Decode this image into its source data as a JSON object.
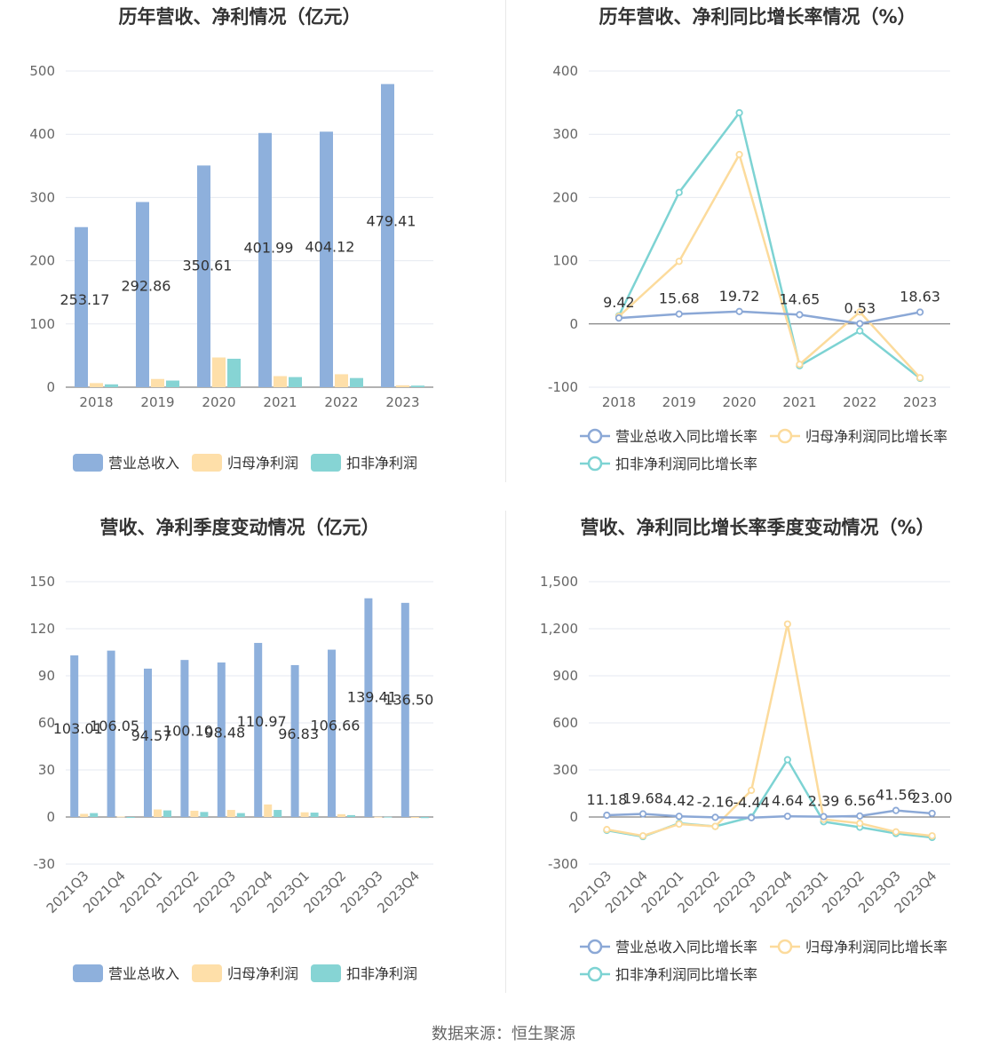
{
  "footer": {
    "source": "数据来源：恒生聚源"
  },
  "colors": {
    "revenue": "#8eb0dc",
    "net_profit": "#fedfa9",
    "deducted": "#86d4d4",
    "revenue_line": "#8ba8d6",
    "profit_line": "#fcdb9c",
    "deducted_line": "#7dd3d3"
  },
  "chart_data": [
    {
      "id": "annual-amount",
      "type": "bar",
      "title": "历年营收、净利情况（亿元）",
      "categories": [
        "2018",
        "2019",
        "2020",
        "2021",
        "2022",
        "2023"
      ],
      "ylim": [
        0,
        500
      ],
      "yticks": [
        0,
        100,
        200,
        300,
        400,
        500
      ],
      "ytick_labels": [
        "0",
        "100",
        "200",
        "300",
        "400",
        "500"
      ],
      "series": [
        {
          "name": "营业总收入",
          "values": [
            253.17,
            292.86,
            350.61,
            401.99,
            404.12,
            479.41
          ],
          "labels": [
            "253.17",
            "292.86",
            "350.61",
            "401.99",
            "404.12",
            "479.41"
          ]
        },
        {
          "name": "归母净利润",
          "values": [
            6.5,
            13.0,
            47.0,
            17.5,
            20.5,
            3.0
          ]
        },
        {
          "name": "扣非净利润",
          "values": [
            4.5,
            10.5,
            45.0,
            16.0,
            14.5,
            2.5
          ]
        }
      ],
      "legend": "bottom",
      "grid": true
    },
    {
      "id": "annual-growth",
      "type": "line",
      "title": "历年营收、净利同比增长率情况（%）",
      "categories": [
        "2018",
        "2019",
        "2020",
        "2021",
        "2022",
        "2023"
      ],
      "ylim": [
        -100,
        400
      ],
      "yticks": [
        -100,
        0,
        100,
        200,
        300,
        400
      ],
      "ytick_labels": [
        "-100",
        "0",
        "100",
        "200",
        "300",
        "400"
      ],
      "series": [
        {
          "name": "营业总收入同比增长率",
          "values": [
            9.42,
            15.68,
            19.72,
            14.65,
            0.53,
            18.63
          ],
          "labels": [
            "9.42",
            "15.68",
            "19.72",
            "14.65",
            "0.53",
            "18.63"
          ]
        },
        {
          "name": "归母净利润同比增长率",
          "values": [
            12,
            99,
            268,
            -64,
            19,
            -85
          ]
        },
        {
          "name": "扣非净利润同比增长率",
          "values": [
            13,
            208,
            334,
            -66,
            -11,
            -86
          ]
        }
      ],
      "legend": "bottom",
      "grid": true
    },
    {
      "id": "quarterly-amount",
      "type": "bar",
      "title": "营收、净利季度变动情况（亿元）",
      "categories": [
        "2021Q3",
        "2021Q4",
        "2022Q1",
        "2022Q2",
        "2022Q3",
        "2022Q4",
        "2023Q1",
        "2023Q2",
        "2023Q3",
        "2023Q4"
      ],
      "ylim": [
        -30,
        150
      ],
      "yticks": [
        -30,
        0,
        30,
        60,
        90,
        120,
        150
      ],
      "ytick_labels": [
        "-30",
        "0",
        "30",
        "60",
        "90",
        "120",
        "150"
      ],
      "series": [
        {
          "name": "营业总收入",
          "values": [
            103.01,
            106.05,
            94.57,
            100.1,
            98.48,
            110.97,
            96.83,
            106.66,
            139.41,
            136.5
          ],
          "labels": [
            "103.01",
            "106.05",
            "94.57",
            "100.10",
            "98.48",
            "110.97",
            "96.83",
            "106.66",
            "139.41",
            "136.50"
          ]
        },
        {
          "name": "归母净利润",
          "values": [
            2.0,
            0.3,
            4.8,
            4.0,
            4.5,
            8.0,
            3.0,
            1.8,
            0.1,
            -0.6
          ]
        },
        {
          "name": "扣非净利润",
          "values": [
            2.5,
            -0.6,
            4.2,
            3.2,
            2.5,
            4.5,
            2.8,
            1.2,
            0.1,
            -0.7
          ]
        }
      ],
      "legend": "bottom",
      "grid": true
    },
    {
      "id": "quarterly-growth",
      "type": "line",
      "title": "营收、净利同比增长率季度变动情况（%）",
      "categories": [
        "2021Q3",
        "2021Q4",
        "2022Q1",
        "2022Q2",
        "2022Q3",
        "2022Q4",
        "2023Q1",
        "2023Q2",
        "2023Q3",
        "2023Q4"
      ],
      "ylim": [
        -300,
        1500
      ],
      "yticks": [
        -300,
        0,
        300,
        600,
        900,
        1200,
        1500
      ],
      "ytick_labels": [
        "-300",
        "0",
        "300",
        "600",
        "900",
        "1,200",
        "1,500"
      ],
      "series": [
        {
          "name": "营业总收入同比增长率",
          "values": [
            11.18,
            19.68,
            4.42,
            -2.16,
            -4.44,
            4.64,
            2.39,
            6.56,
            41.56,
            23.0
          ],
          "labels": [
            "11.18",
            "19.68",
            "4.42",
            "-2.16",
            "-4.44",
            "4.64",
            "2.39",
            "6.56",
            "41.56",
            "23.00"
          ]
        },
        {
          "name": "归母净利润同比增长率",
          "values": [
            -80,
            -120,
            -45,
            -60,
            170,
            1230,
            -15,
            -40,
            -95,
            -120
          ]
        },
        {
          "name": "扣非净利润同比增长率",
          "values": [
            -85,
            -125,
            -40,
            -60,
            0,
            365,
            -30,
            -65,
            -105,
            -130
          ]
        }
      ],
      "legend": "bottom",
      "grid": true
    }
  ]
}
